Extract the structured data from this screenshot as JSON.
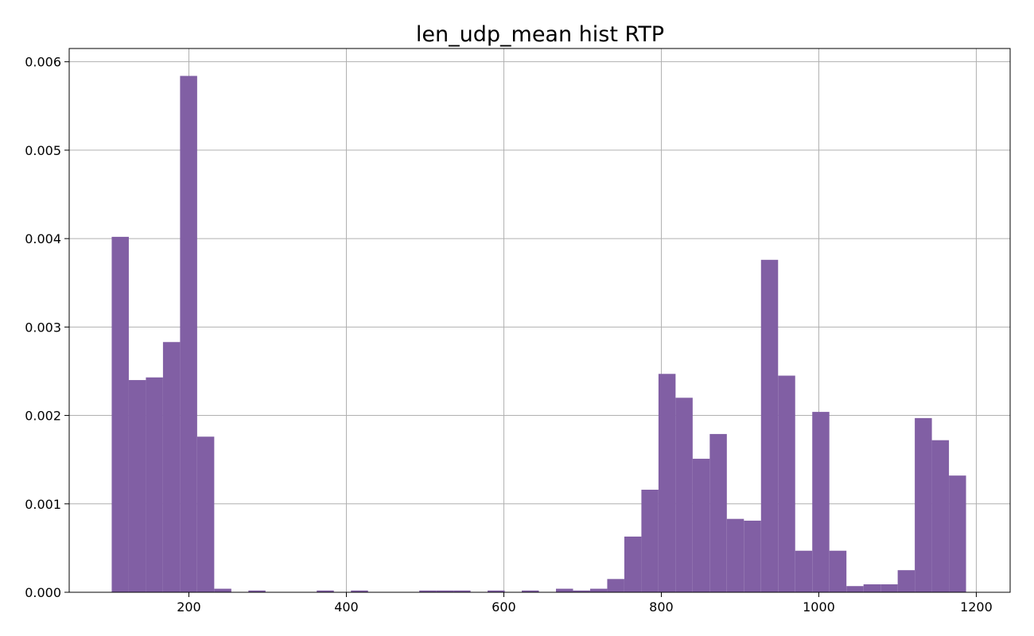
{
  "chart_data": {
    "type": "bar",
    "title": "len_udp_mean hist RTP",
    "xlabel": "",
    "ylabel": "",
    "xlim": [
      48,
      1243
    ],
    "ylim": [
      0,
      0.00615
    ],
    "x_ticks": [
      "200",
      "400",
      "600",
      "800",
      "1000",
      "1200"
    ],
    "x_tick_values": [
      200,
      400,
      600,
      800,
      1000,
      1200
    ],
    "y_ticks": [
      "0.000",
      "0.001",
      "0.002",
      "0.003",
      "0.004",
      "0.005",
      "0.006"
    ],
    "y_tick_values": [
      0,
      0.001,
      0.002,
      0.003,
      0.004,
      0.005,
      0.006
    ],
    "grid": true,
    "bar_color": "#815fa4",
    "bin_start": 102,
    "bin_width": 21.7,
    "values": [
      0.00402,
      0.0024,
      0.00243,
      0.00283,
      0.00584,
      0.00176,
      4e-05,
      0.0,
      2e-05,
      0.0,
      0.0,
      0.0,
      2e-05,
      0.0,
      2e-05,
      0.0,
      0.0,
      0.0,
      2e-05,
      2e-05,
      2e-05,
      0.0,
      2e-05,
      0.0,
      2e-05,
      0.0,
      4e-05,
      2e-05,
      4e-05,
      0.00015,
      0.00063,
      0.00116,
      0.00247,
      0.0022,
      0.00151,
      0.00179,
      0.00083,
      0.00081,
      0.00376,
      0.00245,
      0.00047,
      0.00204,
      0.00047,
      7e-05,
      9e-05,
      9e-05,
      0.00025,
      0.00197,
      0.00172,
      0.00132
    ]
  }
}
